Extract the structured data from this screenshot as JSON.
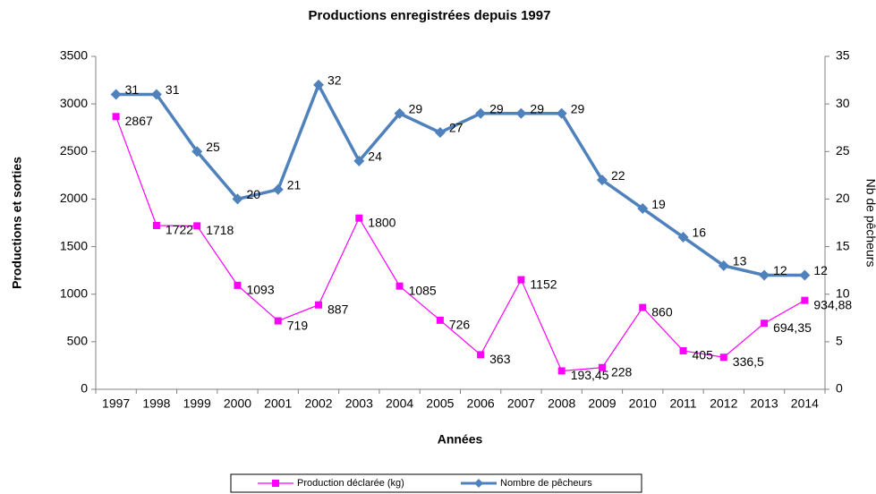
{
  "chart_data": {
    "type": "line",
    "title": "Productions enregistrées depuis 1997",
    "x_label": "Années",
    "y_label": "Productions et sorties",
    "y2_label": "Nb de pêcheurs",
    "categories": [
      "1997",
      "1998",
      "1999",
      "2000",
      "2001",
      "2002",
      "2003",
      "2004",
      "2005",
      "2006",
      "2007",
      "2008",
      "2009",
      "2010",
      "2011",
      "2012",
      "2013",
      "2014"
    ],
    "series": [
      {
        "name": "Production déclarée (kg)",
        "color": "#ff00ff",
        "marker": "square",
        "values": [
          2867,
          1722,
          1718,
          1093,
          719,
          887,
          1800,
          1085,
          726,
          363,
          1152,
          193.45,
          228,
          860,
          405,
          336.5,
          694.35,
          934.88
        ],
        "value_labels": [
          "2867",
          "1722",
          "1718",
          "1093",
          "719",
          "887",
          "1800",
          "1085",
          "726",
          "363",
          "1152",
          "193,45",
          "228",
          "860",
          "405",
          "336,5",
          "694,35",
          "934,88"
        ]
      },
      {
        "name": "Nombre de pêcheurs",
        "color": "#4f81bd",
        "marker": "diamond",
        "axis": "y2",
        "values": [
          31,
          31,
          25,
          20,
          21,
          32,
          24,
          29,
          27,
          29,
          29,
          29,
          22,
          19,
          16,
          13,
          12,
          12
        ]
      }
    ],
    "ylim": [
      0,
      3500
    ],
    "yticks": [
      0,
      500,
      1000,
      1500,
      2000,
      2500,
      3000,
      3500
    ],
    "y2lim": [
      0,
      35
    ],
    "y2ticks": [
      0,
      5,
      10,
      15,
      20,
      25,
      30,
      35
    ],
    "grid": false,
    "legend": "bottom"
  }
}
